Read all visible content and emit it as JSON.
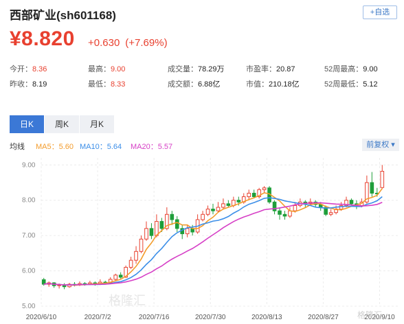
{
  "header": {
    "title": "西部矿业(sh601168)",
    "add_watchlist": "+自选",
    "price": "¥8.820",
    "change": "+0.630",
    "change_pct": "(+7.69%)"
  },
  "stats": {
    "open_label": "今开：",
    "open": "8.36",
    "high_label": "最高：",
    "high": "9.00",
    "volume_label": "成交量：",
    "volume": "78.29万",
    "pe_label": "市盈率：",
    "pe": "20.87",
    "week52_high_label": "52周最高：",
    "week52_high": "9.00",
    "prev_close_label": "昨收：",
    "prev_close": "8.19",
    "low_label": "最低：",
    "low": "8.33",
    "turnover_label": "成交额：",
    "turnover": "6.88亿",
    "mktcap_label": "市值：",
    "mktcap": "210.18亿",
    "week52_low_label": "52周最低：",
    "week52_low": "5.12"
  },
  "tabs": [
    {
      "label": "日K",
      "active": true
    },
    {
      "label": "周K",
      "active": false
    },
    {
      "label": "月K",
      "active": false
    }
  ],
  "legend": {
    "avg_label": "均线",
    "ma5": "MA5：5.60",
    "ma10": "MA10：5.64",
    "ma20": "MA20：5.57"
  },
  "adjust_select": "前复权 ▾",
  "colors": {
    "up": "#e8402f",
    "down": "#1f9e3a",
    "ma5": "#f39c2c",
    "ma10": "#3b8ee8",
    "ma20": "#d63fc6",
    "accent": "#3b78d6"
  },
  "chart_data": {
    "type": "candlestick",
    "y_ticks": [
      "9.00",
      "8.00",
      "7.00",
      "6.00",
      "5.00"
    ],
    "ylim": [
      5.0,
      9.2
    ],
    "x_ticks": [
      "2020/6/10",
      "2020/7/2",
      "2020/7/16",
      "2020/7/30",
      "2020/8/13",
      "2020/8/27",
      "2020/9/10"
    ],
    "grid": true,
    "candles": [
      [
        5.75,
        5.62,
        5.8,
        5.58
      ],
      [
        5.62,
        5.66,
        5.7,
        5.55
      ],
      [
        5.66,
        5.58,
        5.68,
        5.52
      ],
      [
        5.58,
        5.6,
        5.64,
        5.5
      ],
      [
        5.6,
        5.55,
        5.65,
        5.48
      ],
      [
        5.55,
        5.62,
        5.66,
        5.52
      ],
      [
        5.62,
        5.6,
        5.68,
        5.56
      ],
      [
        5.6,
        5.64,
        5.7,
        5.57
      ],
      [
        5.64,
        5.62,
        5.68,
        5.58
      ],
      [
        5.62,
        5.66,
        5.72,
        5.6
      ],
      [
        5.66,
        5.62,
        5.7,
        5.58
      ],
      [
        5.62,
        5.68,
        5.76,
        5.6
      ],
      [
        5.68,
        5.66,
        5.72,
        5.62
      ],
      [
        5.66,
        5.76,
        5.82,
        5.64
      ],
      [
        5.76,
        5.88,
        5.92,
        5.72
      ],
      [
        5.88,
        5.82,
        5.96,
        5.78
      ],
      [
        5.82,
        6.1,
        6.15,
        5.8
      ],
      [
        6.1,
        6.3,
        6.4,
        6.05
      ],
      [
        6.3,
        6.55,
        6.7,
        6.2
      ],
      [
        6.55,
        6.9,
        7.0,
        6.5
      ],
      [
        6.9,
        7.2,
        7.4,
        6.85
      ],
      [
        7.2,
        7.0,
        7.35,
        6.9
      ],
      [
        7.0,
        7.4,
        7.6,
        6.95
      ],
      [
        7.4,
        7.2,
        7.5,
        7.1
      ],
      [
        7.2,
        7.6,
        7.8,
        7.15
      ],
      [
        7.6,
        7.45,
        7.7,
        7.3
      ],
      [
        7.45,
        7.2,
        7.55,
        7.1
      ],
      [
        7.2,
        7.05,
        7.3,
        6.9
      ],
      [
        7.05,
        7.2,
        7.3,
        6.95
      ],
      [
        7.2,
        7.1,
        7.3,
        7.0
      ],
      [
        7.1,
        7.45,
        7.6,
        7.05
      ],
      [
        7.45,
        7.6,
        7.7,
        7.4
      ],
      [
        7.6,
        7.75,
        7.85,
        7.55
      ],
      [
        7.75,
        7.7,
        7.9,
        7.6
      ],
      [
        7.7,
        7.8,
        7.95,
        7.65
      ],
      [
        7.8,
        7.9,
        8.05,
        7.75
      ],
      [
        7.9,
        7.85,
        8.0,
        7.8
      ],
      [
        7.85,
        8.0,
        8.1,
        7.8
      ],
      [
        8.0,
        7.95,
        8.1,
        7.85
      ],
      [
        7.95,
        8.1,
        8.2,
        7.9
      ],
      [
        8.1,
        8.2,
        8.3,
        8.0
      ],
      [
        8.2,
        8.1,
        8.3,
        8.05
      ],
      [
        8.1,
        8.3,
        8.35,
        8.05
      ],
      [
        8.3,
        8.35,
        8.4,
        8.2
      ],
      [
        8.35,
        7.95,
        8.4,
        7.9
      ],
      [
        7.95,
        7.7,
        8.0,
        7.6
      ],
      [
        7.7,
        7.6,
        7.8,
        7.45
      ],
      [
        7.6,
        7.55,
        7.7,
        7.45
      ],
      [
        7.55,
        7.7,
        7.8,
        7.5
      ],
      [
        7.7,
        7.85,
        7.95,
        7.65
      ],
      [
        7.85,
        7.95,
        8.05,
        7.8
      ],
      [
        7.95,
        7.9,
        8.0,
        7.8
      ],
      [
        7.9,
        7.95,
        8.05,
        7.85
      ],
      [
        7.95,
        7.88,
        8.0,
        7.8
      ],
      [
        7.88,
        7.8,
        7.95,
        7.7
      ],
      [
        7.8,
        7.6,
        7.85,
        7.55
      ],
      [
        7.6,
        7.65,
        7.75,
        7.55
      ],
      [
        7.65,
        7.75,
        7.85,
        7.6
      ],
      [
        7.75,
        7.85,
        7.95,
        7.7
      ],
      [
        7.85,
        8.0,
        8.1,
        7.8
      ],
      [
        8.0,
        7.9,
        8.05,
        7.85
      ],
      [
        7.9,
        7.85,
        8.0,
        7.75
      ],
      [
        7.85,
        7.95,
        8.05,
        7.8
      ],
      [
        7.95,
        8.5,
        8.7,
        7.9
      ],
      [
        8.5,
        8.2,
        8.8,
        8.1
      ],
      [
        8.2,
        8.19,
        8.35,
        8.1
      ],
      [
        8.36,
        8.82,
        9.0,
        8.33
      ]
    ]
  },
  "watermarks": {
    "left": "格隆汇",
    "right": "格隆汇"
  }
}
